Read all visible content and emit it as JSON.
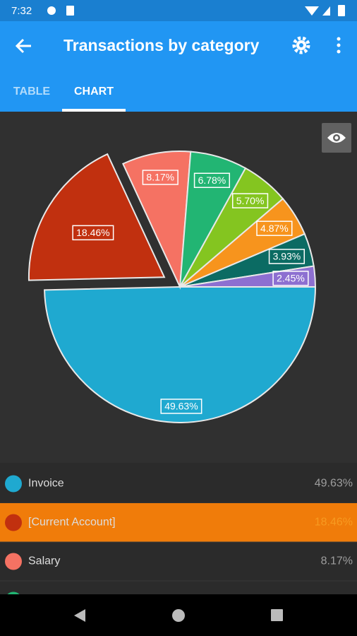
{
  "status_bar": {
    "time": "7:32"
  },
  "app_bar": {
    "title": "Transactions by category"
  },
  "tabs": [
    "TABLE",
    "CHART"
  ],
  "chart_data": {
    "type": "pie",
    "categories": [
      "Invoice",
      "[Current Account]",
      "Salary",
      null,
      null,
      null,
      null,
      null
    ],
    "values": [
      49.63,
      18.46,
      8.17,
      6.78,
      5.7,
      4.87,
      3.93,
      2.45
    ],
    "value_labels": [
      "49.63%",
      "18.46%",
      "8.17%",
      "6.78%",
      "5.70%",
      "4.87%",
      "3.93%",
      "2.45%"
    ],
    "colors": [
      "#1fa9d0",
      "#c1300f",
      "#f57263",
      "#22b573",
      "#84c520",
      "#f7941d",
      "#0b6b63",
      "#8d6fd1"
    ]
  }
}
